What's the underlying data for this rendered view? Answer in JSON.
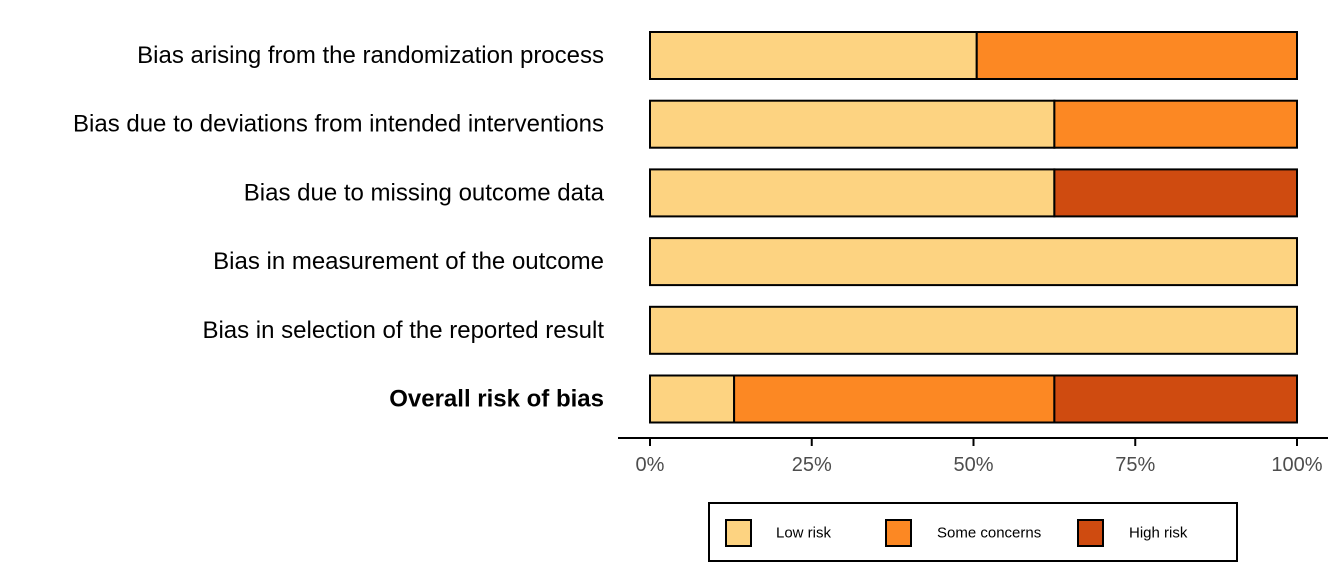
{
  "chart_data": {
    "type": "bar",
    "orientation": "horizontal",
    "stacked": true,
    "categories": [
      "Bias arising from the randomization process",
      "Bias due to deviations from intended interventions",
      "Bias due to missing outcome data",
      "Bias in measurement of the outcome",
      "Bias in selection of the reported result",
      "Overall risk of bias"
    ],
    "bold_categories": [
      "Overall risk of bias"
    ],
    "series": [
      {
        "name": "Low risk",
        "color": "#FDD381",
        "values": [
          50.5,
          62.5,
          62.5,
          100,
          100,
          13
        ]
      },
      {
        "name": "Some concerns",
        "color": "#FC8823",
        "values": [
          49.5,
          37.5,
          0,
          0,
          0,
          49.5
        ]
      },
      {
        "name": "High risk",
        "color": "#CF4B10",
        "values": [
          0,
          0,
          37.5,
          0,
          0,
          37.5
        ]
      }
    ],
    "xlim": [
      0,
      100
    ],
    "x_ticks": [
      0,
      25,
      50,
      75,
      100
    ],
    "x_tick_labels": [
      "0%",
      "25%",
      "50%",
      "75%",
      "100%"
    ],
    "xlabel": "",
    "ylabel": "",
    "title": "",
    "grid": false,
    "legend_position": "bottom"
  }
}
